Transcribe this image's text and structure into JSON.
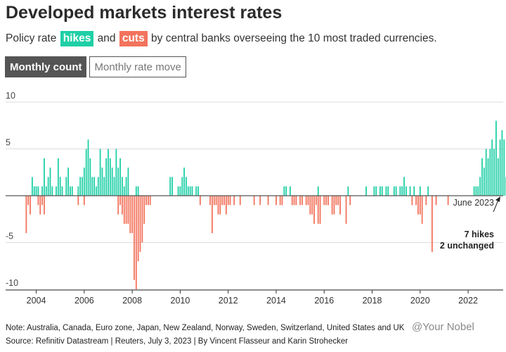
{
  "header": {
    "title": "Developed markets interest rates",
    "subtitle_pre": "Policy rate",
    "hikes_tag": "hikes",
    "mid": "and",
    "cuts_tag": "cuts",
    "subtitle_post": "by central banks overseeing the 10 most traded currencies."
  },
  "tabs": [
    {
      "label": "Monthly count",
      "active": true
    },
    {
      "label": "Monthly rate move",
      "active": false
    }
  ],
  "colors": {
    "hike": "#1fcfa6",
    "cut": "#f2735c",
    "grid": "#dddddd",
    "zero": "#555555",
    "active_tab": "#555555"
  },
  "annotation": {
    "date": "June 2023",
    "hikes": "7 hikes",
    "unchanged": "2 unchanged"
  },
  "footer": {
    "note": "Note: Australia, Canada, Euro zone, Japan, New Zealand, Norway, Sweden, Switzerland, United States and UK",
    "source": "Source: Refinitiv Datastream | Reuters, July 3, 2023 | By Vincent Flasseur and Karin Strohecker"
  },
  "watermark": "@Your Nobel",
  "chart_data": {
    "type": "bar",
    "x_start": "2003-07",
    "frequency": "monthly",
    "ylim": [
      -10,
      10
    ],
    "y_ticks": [
      10,
      5,
      -5,
      -10
    ],
    "y_tick_labels": [
      "10",
      "5",
      "-5",
      "-10"
    ],
    "x_ticks": [
      2004,
      2006,
      2008,
      2010,
      2012,
      2014,
      2016,
      2018,
      2020,
      2022
    ],
    "x_tick_labels": [
      "2004",
      "2006",
      "2008",
      "2010",
      "2012",
      "2014",
      "2016",
      "2018",
      "2020",
      "2022"
    ],
    "series": [
      {
        "name": "hikes",
        "values": [
          0,
          0,
          0,
          0,
          2,
          1,
          1,
          1,
          0,
          1,
          4,
          1,
          2,
          3,
          1,
          0,
          1,
          4,
          2,
          1,
          0,
          2,
          3,
          1,
          1,
          0,
          0,
          1,
          2,
          2,
          3,
          5,
          6,
          4,
          2,
          2,
          1,
          2,
          5,
          3,
          2,
          4,
          5,
          4,
          3,
          2,
          5,
          3,
          4,
          2,
          1,
          2,
          3,
          0,
          0,
          0,
          1,
          1,
          0,
          0,
          0,
          0,
          0,
          0,
          0,
          0,
          0,
          0,
          0,
          0,
          0,
          0,
          0,
          2,
          2,
          0,
          0,
          1,
          1,
          2,
          3,
          2,
          1,
          1,
          1,
          0,
          1,
          1,
          0,
          0,
          0,
          0,
          0,
          0,
          0,
          0,
          0,
          0,
          0,
          0,
          0,
          0,
          0,
          0,
          0,
          0,
          0,
          0,
          0,
          0,
          0,
          0,
          0,
          0,
          0,
          0,
          0,
          0,
          0,
          0,
          0,
          0,
          0,
          0,
          0,
          0,
          0,
          0,
          0,
          0,
          1,
          1,
          0,
          1,
          0,
          0,
          0,
          0,
          0,
          0,
          0,
          0,
          0,
          0,
          0,
          0,
          0,
          1,
          0,
          0,
          0,
          0,
          0,
          0,
          0,
          0,
          0,
          0,
          0,
          0,
          0,
          0,
          1,
          0,
          0,
          0,
          0,
          0,
          0,
          0,
          0,
          1,
          0,
          0,
          0,
          1,
          1,
          0,
          1,
          1,
          0,
          1,
          1,
          0,
          0,
          1,
          1,
          0,
          1,
          1,
          2,
          1,
          0,
          1,
          0,
          1,
          0,
          0,
          1,
          0,
          0,
          0,
          1,
          0,
          0,
          0,
          0,
          0,
          0,
          0,
          0,
          0,
          0,
          0,
          0,
          0,
          0,
          0,
          0,
          0,
          0,
          0,
          0,
          0,
          0,
          1,
          1,
          1,
          2,
          4,
          3,
          5,
          4,
          5,
          6,
          5,
          8,
          4,
          6,
          7,
          6,
          2,
          6,
          6,
          7
        ]
      },
      {
        "name": "cuts",
        "values": [
          0,
          -4,
          -1,
          -2,
          0,
          0,
          0,
          -1,
          -2,
          -1,
          -2,
          0,
          0,
          0,
          0,
          0,
          0,
          0,
          0,
          0,
          0,
          0,
          0,
          0,
          0,
          0,
          0,
          -1,
          0,
          0,
          -1,
          0,
          0,
          0,
          0,
          0,
          0,
          0,
          0,
          0,
          0,
          0,
          0,
          0,
          0,
          0,
          0,
          -2,
          -1,
          -2,
          -3,
          -3,
          -3,
          -4,
          -4,
          -9,
          -10,
          -7,
          -6,
          -5,
          -3,
          -1,
          -1,
          -1,
          0,
          0,
          0,
          0,
          0,
          0,
          0,
          0,
          0,
          0,
          0,
          0,
          0,
          0,
          0,
          0,
          0,
          0,
          0,
          0,
          0,
          0,
          0,
          0,
          -1,
          0,
          0,
          0,
          0,
          -1,
          -4,
          -1,
          -1,
          -2,
          -2,
          -1,
          -1,
          -2,
          -1,
          -1,
          0,
          -1,
          0,
          0,
          -1,
          0,
          0,
          0,
          0,
          0,
          0,
          -1,
          0,
          0,
          -1,
          0,
          0,
          0,
          -1,
          0,
          0,
          0,
          -1,
          0,
          -1,
          -1,
          0,
          0,
          0,
          0,
          -1,
          -1,
          -1,
          0,
          -1,
          -1,
          0,
          -1,
          -1,
          -2,
          -2,
          -3,
          -1,
          -3,
          -3,
          0,
          -1,
          -1,
          -1,
          0,
          -2,
          -2,
          -1,
          -1,
          -2,
          0,
          0,
          -3,
          0,
          -1,
          0,
          0,
          0,
          0,
          0,
          0,
          0,
          0,
          0,
          0,
          0,
          0,
          0,
          0,
          0,
          0,
          0,
          0,
          0,
          0,
          0,
          0,
          0,
          0,
          0,
          0,
          0,
          0,
          0,
          0,
          -1,
          0,
          -1,
          -2,
          -2,
          -3,
          0,
          -1,
          0,
          0,
          -6,
          0,
          -1,
          0,
          0,
          0,
          0,
          0,
          -1,
          0,
          0,
          0,
          0,
          0,
          0,
          0,
          0,
          0,
          0,
          0,
          0,
          0,
          0,
          0,
          0,
          0,
          0,
          0,
          0,
          0,
          0,
          0,
          0,
          0,
          0,
          0,
          0,
          0,
          0,
          0,
          0,
          0,
          0,
          0,
          0
        ]
      }
    ]
  }
}
